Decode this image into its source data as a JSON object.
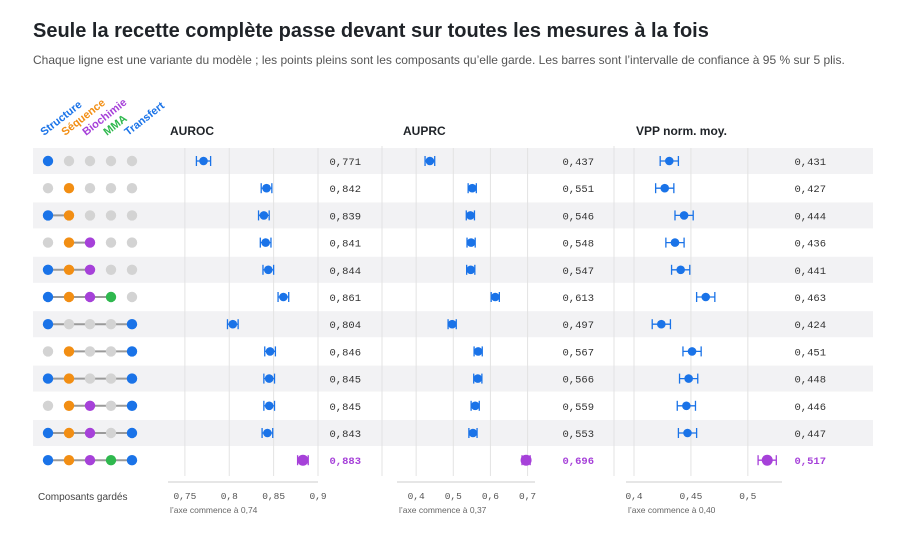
{
  "title": "Seule la recette complète passe devant sur toutes les mesures à la fois",
  "subtitle": "Chaque ligne est une variante du modèle ; les points pleins sont les composants qu’elle garde. Les barres sont l’intervalle de confiance à 95 % sur 5 plis.",
  "colors": {
    "components": [
      "#1a73e8",
      "#f28e13",
      "#a641d9",
      "#2fb84e",
      "#1a73e8"
    ],
    "inactive": "#d3d3d3",
    "marker": "#1a73e8",
    "highlight": "#a641d9",
    "band": "#f2f2f4",
    "grid": "#e3e3e3"
  },
  "chart_data": {
    "type": "dot-plot with error bars",
    "components": [
      "Structure",
      "Séquence",
      "Biochimie",
      "MMA",
      "Transfert"
    ],
    "row_axis_label": "Composants gardés",
    "rows": [
      {
        "kept": [
          1,
          0,
          0,
          0,
          0
        ],
        "auroc": "0,771",
        "auprc": "0,437",
        "vpp": "0,431"
      },
      {
        "kept": [
          0,
          1,
          0,
          0,
          0
        ],
        "auroc": "0,842",
        "auprc": "0,551",
        "vpp": "0,427"
      },
      {
        "kept": [
          1,
          1,
          0,
          0,
          0
        ],
        "auroc": "0,839",
        "auprc": "0,546",
        "vpp": "0,444"
      },
      {
        "kept": [
          0,
          1,
          1,
          0,
          0
        ],
        "auroc": "0,841",
        "auprc": "0,548",
        "vpp": "0,436"
      },
      {
        "kept": [
          1,
          1,
          1,
          0,
          0
        ],
        "auroc": "0,844",
        "auprc": "0,547",
        "vpp": "0,441"
      },
      {
        "kept": [
          1,
          1,
          1,
          1,
          0
        ],
        "auroc": "0,861",
        "auprc": "0,613",
        "vpp": "0,463"
      },
      {
        "kept": [
          1,
          0,
          0,
          0,
          1
        ],
        "auroc": "0,804",
        "auprc": "0,497",
        "vpp": "0,424"
      },
      {
        "kept": [
          0,
          1,
          0,
          0,
          1
        ],
        "auroc": "0,846",
        "auprc": "0,567",
        "vpp": "0,451"
      },
      {
        "kept": [
          1,
          1,
          0,
          0,
          1
        ],
        "auroc": "0,845",
        "auprc": "0,566",
        "vpp": "0,448"
      },
      {
        "kept": [
          0,
          1,
          1,
          0,
          1
        ],
        "auroc": "0,845",
        "auprc": "0,559",
        "vpp": "0,446"
      },
      {
        "kept": [
          1,
          1,
          1,
          0,
          1
        ],
        "auroc": "0,843",
        "auprc": "0,553",
        "vpp": "0,447"
      },
      {
        "kept": [
          1,
          1,
          1,
          1,
          1
        ],
        "auroc": "0,883",
        "auprc": "0,696",
        "vpp": "0,517",
        "highlight": true
      }
    ],
    "metrics": [
      {
        "key": "auroc",
        "label": "AUROC",
        "xlim": [
          0.74,
          0.9
        ],
        "ticks": [
          0.75,
          0.8,
          0.85,
          0.9
        ],
        "tick_labels": [
          "0,75",
          "0,8",
          "0,85",
          "0,9"
        ],
        "axis_note": "l’axe commence à 0,74",
        "ci_halfwidth": [
          0.008,
          0.006,
          0.006,
          0.006,
          0.006,
          0.006,
          0.006,
          0.006,
          0.006,
          0.006,
          0.006,
          0.006
        ]
      },
      {
        "key": "auprc",
        "label": "AUPRC",
        "xlim": [
          0.37,
          0.72
        ],
        "ticks": [
          0.4,
          0.5,
          0.6,
          0.7
        ],
        "tick_labels": [
          "0,4",
          "0,5",
          "0,6",
          "0,7"
        ],
        "axis_note": "l’axe commence à 0,37",
        "ci_halfwidth": [
          0.013,
          0.011,
          0.011,
          0.011,
          0.011,
          0.011,
          0.011,
          0.011,
          0.011,
          0.011,
          0.011,
          0.011
        ]
      },
      {
        "key": "vpp",
        "label": "VPP norm. moy.",
        "xlim": [
          0.4,
          0.53
        ],
        "ticks": [
          0.4,
          0.45,
          0.5
        ],
        "tick_labels": [
          "0,4",
          "0,45",
          "0,5"
        ],
        "axis_note": "l’axe commence à 0,40",
        "ci_halfwidth": [
          0.008,
          0.008,
          0.008,
          0.008,
          0.008,
          0.008,
          0.008,
          0.008,
          0.008,
          0.008,
          0.008,
          0.008
        ]
      }
    ]
  }
}
